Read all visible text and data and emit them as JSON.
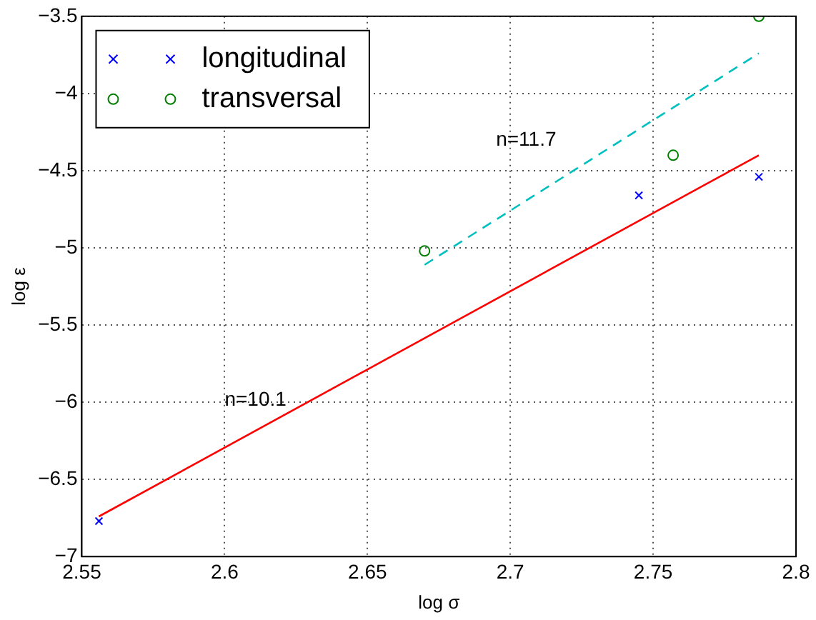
{
  "chart_data": {
    "type": "scatter",
    "xlabel": "log σ",
    "ylabel": "log ε",
    "xlim": [
      2.55,
      2.8
    ],
    "xticks": [
      2.55,
      2.6,
      2.65,
      2.7,
      2.75,
      2.8
    ],
    "ylim": [
      -7,
      -3.5
    ],
    "yticks": [
      -7,
      -6.5,
      -6,
      -5.5,
      -5,
      -4.5,
      -4,
      -3.5
    ],
    "grid": true,
    "legend": "top left",
    "series": [
      {
        "name": "longitudinal",
        "color": "#0000ff",
        "marker": "cross",
        "x": [
          2.556,
          2.745,
          2.787
        ],
        "values": [
          -6.77,
          -4.66,
          -4.54
        ]
      },
      {
        "name": "transversal",
        "color": "#008000",
        "marker": "circle",
        "x": [
          2.67,
          2.757,
          2.787
        ],
        "values": [
          -5.02,
          -4.4,
          -3.5
        ]
      },
      {
        "type": "line",
        "color": "#ff0000",
        "marker": "none",
        "line_style": "solid",
        "x": [
          2.556,
          2.787
        ],
        "values": [
          -6.74,
          -4.4
        ]
      },
      {
        "type": "line",
        "color": "#00bfbf",
        "marker": "none",
        "line_style": "dashed",
        "x": [
          2.67,
          2.787
        ],
        "values": [
          -5.11,
          -3.74
        ]
      }
    ],
    "annotations": [
      "n=11.7",
      "n=10.1"
    ]
  }
}
